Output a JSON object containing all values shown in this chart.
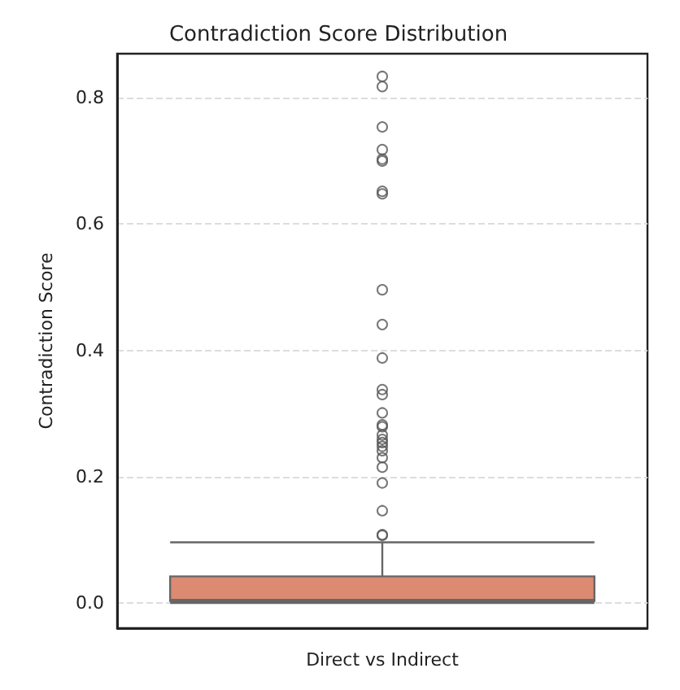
{
  "chart_data": {
    "type": "box",
    "title": "Contradiction Score Distribution",
    "xlabel": "Direct vs Indirect",
    "ylabel": "Contradiction Score",
    "categories": [
      null
    ],
    "series": [
      {
        "color": "#dd8a72",
        "boxes": [
          {
            "low": 0,
            "q1": 0.003,
            "median": 0.005,
            "q3": 0.042,
            "high": 0.096,
            "outliers": [
              0.834,
              0.818,
              0.754,
              0.718,
              0.703,
              0.7,
              0.652,
              0.648,
              0.496,
              0.441,
              0.388,
              0.338,
              0.33,
              0.301,
              0.282,
              0.279,
              0.266,
              0.259,
              0.254,
              0.248,
              0.241,
              0.23,
              0.215,
              0.19,
              0.146,
              0.108,
              0.107
            ]
          }
        ]
      }
    ],
    "ylim": [
      -0.04,
      0.87
    ],
    "yticks": [
      {
        "value": 0,
        "label": "0.0"
      },
      {
        "value": 0.2,
        "label": "0.2"
      },
      {
        "value": 0.4,
        "label": "0.4"
      },
      {
        "value": 0.6,
        "label": "0.6"
      },
      {
        "value": 0.8,
        "label": "0.8"
      }
    ],
    "grid": "y",
    "marker": "circle"
  }
}
